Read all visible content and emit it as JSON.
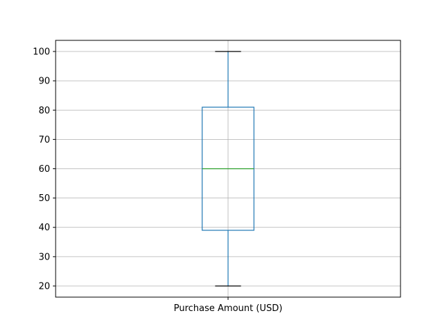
{
  "chart_data": {
    "type": "box",
    "categories": [
      "Purchase Amount (USD)"
    ],
    "series": [
      {
        "category": "Purchase Amount (USD)",
        "min": 20,
        "q1": 39,
        "median": 60,
        "q3": 81,
        "max": 100
      }
    ],
    "title": "",
    "xlabel": "",
    "ylabel": "",
    "ylim": [
      16.2,
      103.8
    ],
    "yticks": [
      20,
      30,
      40,
      50,
      60,
      70,
      80,
      90,
      100
    ],
    "ytick_labels": [
      "20",
      "30",
      "40",
      "50",
      "60",
      "70",
      "80",
      "90",
      "100"
    ],
    "grid": true,
    "colors": {
      "box": "#1f77b4",
      "median": "#2ca02c",
      "cap": "#000000",
      "grid": "#b0b0b0",
      "axes": "#000000"
    }
  }
}
